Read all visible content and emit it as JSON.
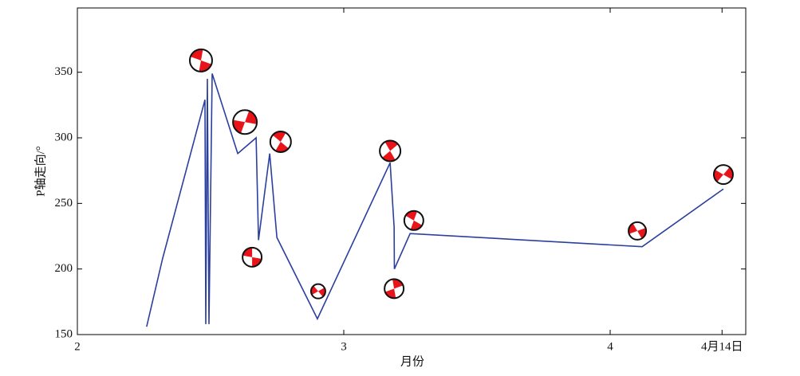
{
  "chart_data": {
    "type": "line",
    "x_label": "月份",
    "y_label": "P轴走向/°",
    "x": [
      2.26,
      2.32,
      2.479,
      2.482,
      2.488,
      2.494,
      2.506,
      2.602,
      2.671,
      2.68,
      2.722,
      2.749,
      2.901,
      3.174,
      3.189,
      3.19,
      3.249,
      4.12,
      4.425
    ],
    "series": [
      {
        "color": "#2b3f9e",
        "values": [
          156,
          208,
          329,
          158,
          345,
          158,
          349,
          288,
          300,
          222,
          288,
          224,
          162,
          281,
          232,
          200,
          227,
          217,
          261
        ]
      }
    ],
    "beachballs": {
      "color": "#e8141a",
      "x": [
        2.464,
        2.629,
        2.763,
        2.656,
        2.904,
        3.174,
        3.189,
        3.263,
        4.102,
        4.425
      ],
      "y": [
        359,
        312,
        297,
        209,
        183,
        290,
        185,
        237,
        229,
        272
      ]
    },
    "xlim": [
      2,
      4.509
    ],
    "ylim": [
      150,
      399
    ],
    "xticks": [
      2,
      3,
      4,
      {
        "value": 4.42,
        "label": "4月14日"
      }
    ],
    "yticks": [
      150,
      200,
      250,
      300,
      350
    ]
  }
}
